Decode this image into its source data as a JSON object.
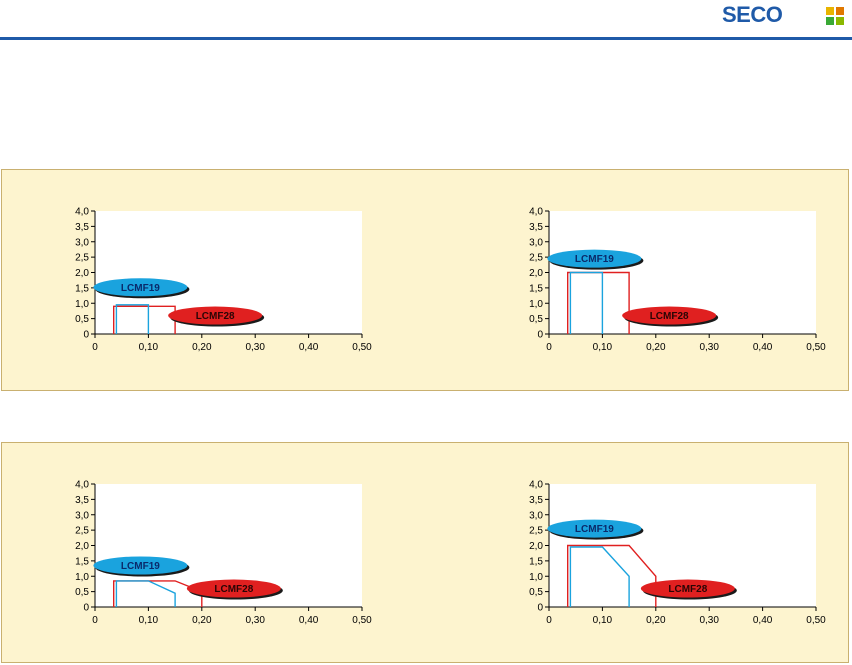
{
  "brand": {
    "name": "SECO",
    "primary_color": "#1f5aa8",
    "mark_colors": [
      "#e8b400",
      "#e07800",
      "#39a935",
      "#8ab800"
    ]
  },
  "colors": {
    "lcmf19": "#1aa3de",
    "lcmf28": "#e02020",
    "panel_bg": "#fdf4cf"
  },
  "chart_data": [
    {
      "type": "area",
      "xlim": [
        0,
        0.5
      ],
      "ylim": [
        0,
        4.0
      ],
      "x_ticks": [
        "0",
        "0,10",
        "0,20",
        "0,30",
        "0,40",
        "0,50"
      ],
      "y_ticks": [
        "0",
        "0,5",
        "1,0",
        "1,5",
        "2,0",
        "2,5",
        "3,0",
        "3,5",
        "4,0"
      ],
      "series": [
        {
          "name": "LCMF19",
          "points": [
            [
              0.04,
              0
            ],
            [
              0.04,
              0.95
            ],
            [
              0.1,
              0.95
            ],
            [
              0.1,
              0
            ]
          ]
        },
        {
          "name": "LCMF28",
          "points": [
            [
              0.035,
              0
            ],
            [
              0.035,
              0.9
            ],
            [
              0.15,
              0.9
            ],
            [
              0.15,
              0
            ]
          ]
        }
      ]
    },
    {
      "type": "area",
      "xlim": [
        0,
        0.5
      ],
      "ylim": [
        0,
        4.0
      ],
      "x_ticks": [
        "0",
        "0,10",
        "0,20",
        "0,30",
        "0,40",
        "0,50"
      ],
      "y_ticks": [
        "0",
        "0,5",
        "1,0",
        "1,5",
        "2,0",
        "2,5",
        "3,0",
        "3,5",
        "4,0"
      ],
      "series": [
        {
          "name": "LCMF19",
          "points": [
            [
              0.04,
              0
            ],
            [
              0.04,
              2.0
            ],
            [
              0.1,
              2.0
            ],
            [
              0.1,
              0
            ]
          ]
        },
        {
          "name": "LCMF28",
          "points": [
            [
              0.035,
              0
            ],
            [
              0.035,
              2.0
            ],
            [
              0.15,
              2.0
            ],
            [
              0.15,
              0
            ]
          ]
        }
      ]
    },
    {
      "type": "area",
      "xlim": [
        0,
        0.5
      ],
      "ylim": [
        0,
        4.0
      ],
      "x_ticks": [
        "0",
        "0,10",
        "0,20",
        "0,30",
        "0,40",
        "0,50"
      ],
      "y_ticks": [
        "0",
        "0,5",
        "1,0",
        "1,5",
        "2,0",
        "2,5",
        "3,0",
        "3,5",
        "4,0"
      ],
      "series": [
        {
          "name": "LCMF19",
          "points": [
            [
              0.04,
              0
            ],
            [
              0.04,
              0.85
            ],
            [
              0.1,
              0.85
            ],
            [
              0.15,
              0.45
            ],
            [
              0.15,
              0
            ]
          ]
        },
        {
          "name": "LCMF28",
          "points": [
            [
              0.035,
              0
            ],
            [
              0.035,
              0.85
            ],
            [
              0.15,
              0.85
            ],
            [
              0.2,
              0.5
            ],
            [
              0.2,
              0
            ]
          ]
        }
      ]
    },
    {
      "type": "area",
      "xlim": [
        0,
        0.5
      ],
      "ylim": [
        0,
        4.0
      ],
      "x_ticks": [
        "0",
        "0,10",
        "0,20",
        "0,30",
        "0,40",
        "0,50"
      ],
      "y_ticks": [
        "0",
        "0,5",
        "1,0",
        "1,5",
        "2,0",
        "2,5",
        "3,0",
        "3,5",
        "4,0"
      ],
      "series": [
        {
          "name": "LCMF19",
          "points": [
            [
              0.04,
              0
            ],
            [
              0.04,
              1.95
            ],
            [
              0.1,
              1.95
            ],
            [
              0.15,
              1.0
            ],
            [
              0.15,
              0
            ]
          ]
        },
        {
          "name": "LCMF28",
          "points": [
            [
              0.035,
              0
            ],
            [
              0.035,
              2.0
            ],
            [
              0.15,
              2.0
            ],
            [
              0.2,
              1.0
            ],
            [
              0.2,
              0
            ]
          ]
        }
      ]
    }
  ]
}
